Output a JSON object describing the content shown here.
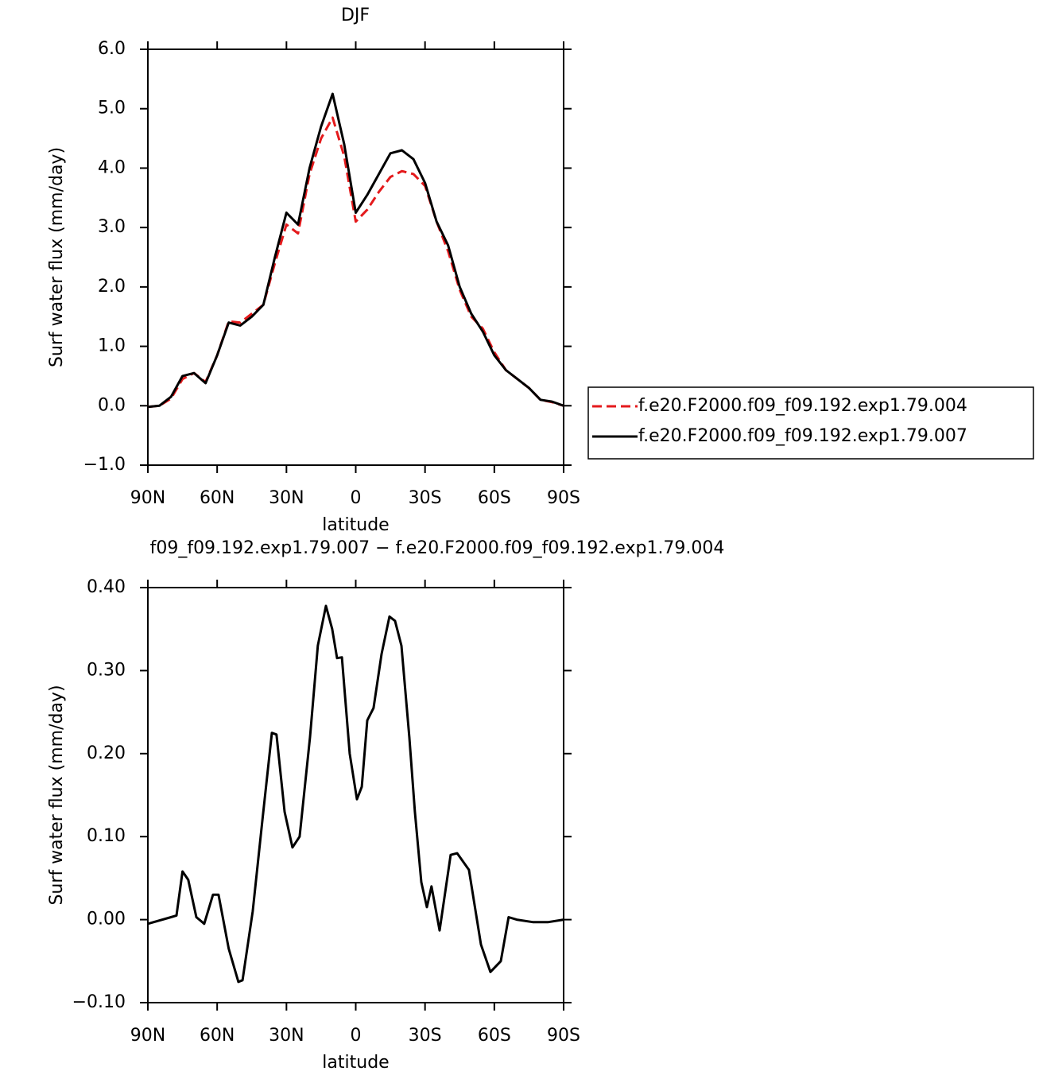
{
  "chart_data": [
    {
      "type": "line",
      "title": "DJF",
      "x_label": "latitude",
      "y_label": "Surf water flux (mm/day)",
      "x": [
        90,
        85,
        80,
        75,
        70,
        65,
        60,
        55,
        50,
        45,
        40,
        35,
        30,
        25,
        20,
        15,
        10,
        5,
        0,
        -5,
        -10,
        -15,
        -20,
        -25,
        -30,
        -35,
        -40,
        -45,
        -50,
        -55,
        -60,
        -65,
        -70,
        -75,
        -80,
        -85,
        -90
      ],
      "series": [
        {
          "name": "f.e20.F2000.f09_f09.192.exp1.79.004",
          "color": "#e41a1c",
          "dashed": true,
          "values": [
            -0.02,
            0.0,
            0.12,
            0.45,
            0.55,
            0.4,
            0.85,
            1.42,
            1.4,
            1.55,
            1.7,
            2.4,
            3.05,
            2.9,
            3.9,
            4.5,
            4.85,
            4.2,
            3.1,
            3.3,
            3.6,
            3.85,
            3.95,
            3.9,
            3.7,
            3.1,
            2.6,
            1.95,
            1.5,
            1.3,
            0.9,
            0.6,
            0.45,
            0.3,
            0.1,
            0.06,
            0.0
          ]
        },
        {
          "name": "f.e20.F2000.f09_f09.192.exp1.79.007",
          "color": "#000000",
          "dashed": false,
          "values": [
            -0.02,
            0.0,
            0.15,
            0.5,
            0.55,
            0.38,
            0.85,
            1.4,
            1.35,
            1.5,
            1.7,
            2.5,
            3.25,
            3.05,
            4.0,
            4.7,
            5.25,
            4.4,
            3.25,
            3.55,
            3.9,
            4.25,
            4.3,
            4.15,
            3.75,
            3.1,
            2.7,
            2.0,
            1.55,
            1.25,
            0.85,
            0.6,
            0.45,
            0.3,
            0.1,
            0.07,
            0.0
          ]
        }
      ],
      "xlim": [
        90,
        -90
      ],
      "xticks": [
        {
          "value": 90,
          "label": "90N"
        },
        {
          "value": 60,
          "label": "60N"
        },
        {
          "value": 30,
          "label": "30N"
        },
        0,
        {
          "value": -30,
          "label": "30S"
        },
        {
          "value": -60,
          "label": "60S"
        },
        {
          "value": -90,
          "label": "90S"
        }
      ],
      "ylim": [
        -1.0,
        6.0
      ],
      "yticks": [
        {
          "value": -1,
          "label": "−1.0"
        },
        {
          "value": 0,
          "label": "0.0"
        },
        {
          "value": 1,
          "label": "1.0"
        },
        {
          "value": 2,
          "label": "2.0"
        },
        {
          "value": 3,
          "label": "3.0"
        },
        {
          "value": 4,
          "label": "4.0"
        },
        {
          "value": 5,
          "label": "5.0"
        },
        {
          "value": 6,
          "label": "6.0"
        }
      ],
      "legend": "right"
    },
    {
      "type": "line",
      "title": "f09_f09.192.exp1.79.007 − f.e20.F2000.f09_f09.192.exp1.79.004",
      "x_label": "latitude",
      "y_label": "Surf water flux (mm/day)",
      "x": [
        90,
        80,
        77.6,
        75,
        72.5,
        69,
        65.6,
        61.8,
        59.4,
        55,
        50.8,
        49,
        44.6,
        40.4,
        36.3,
        34.3,
        30.8,
        27.4,
        24.3,
        19.8,
        16.4,
        12.9,
        10.2,
        8.1,
        6,
        2.6,
        -0.5,
        -2.6,
        -5,
        -7.7,
        -11.2,
        -14.6,
        -17,
        -19.8,
        -23.2,
        -25.6,
        -28.4,
        -30.8,
        -32.8,
        -36.3,
        -41.1,
        -43.9,
        -49,
        -54.2,
        -58.3,
        -62.8,
        -66.2,
        -69.7,
        -76.6,
        -83.4,
        -90
      ],
      "series": [
        {
          "color": "#000000",
          "dashed": false,
          "values": [
            -0.005,
            0.003,
            0.005,
            0.058,
            0.048,
            0.003,
            -0.005,
            0.03,
            0.03,
            -0.035,
            -0.075,
            -0.073,
            0.01,
            0.12,
            0.225,
            0.223,
            0.13,
            0.087,
            0.1,
            0.22,
            0.33,
            0.378,
            0.35,
            0.315,
            0.316,
            0.2,
            0.145,
            0.16,
            0.24,
            0.255,
            0.32,
            0.365,
            0.36,
            0.33,
            0.22,
            0.13,
            0.045,
            0.015,
            0.04,
            -0.013,
            0.078,
            0.08,
            0.06,
            -0.03,
            -0.063,
            -0.05,
            0.003,
            0.0,
            -0.003,
            -0.003,
            0.0
          ]
        }
      ],
      "xlim": [
        90,
        -90
      ],
      "xticks": [
        {
          "value": 90,
          "label": "90N"
        },
        {
          "value": 60,
          "label": "60N"
        },
        {
          "value": 30,
          "label": "30N"
        },
        0,
        {
          "value": -30,
          "label": "30S"
        },
        {
          "value": -60,
          "label": "60S"
        },
        {
          "value": -90,
          "label": "90S"
        }
      ],
      "ylim": [
        -0.1,
        0.4
      ],
      "yticks": [
        {
          "value": -0.1,
          "label": "−0.10"
        },
        {
          "value": 0,
          "label": "0.00"
        },
        {
          "value": 0.1,
          "label": "0.10"
        },
        {
          "value": 0.2,
          "label": "0.20"
        },
        {
          "value": 0.3,
          "label": "0.30"
        },
        {
          "value": 0.4,
          "label": "0.40"
        }
      ]
    }
  ]
}
